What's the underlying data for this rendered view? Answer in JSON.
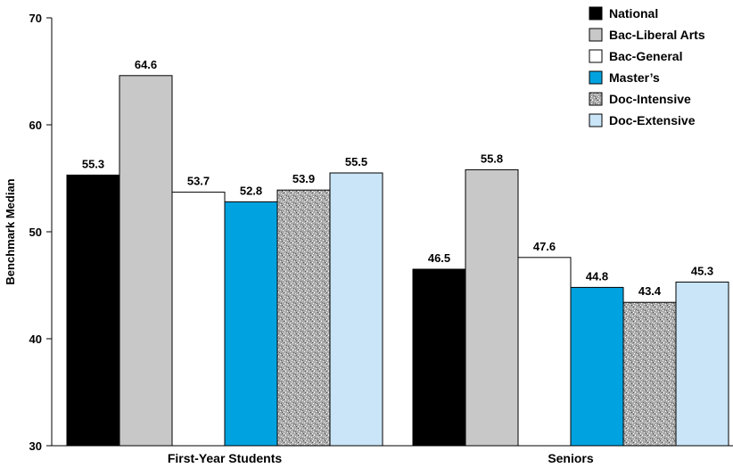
{
  "chart_data": {
    "type": "bar",
    "title": "",
    "xlabel": "",
    "ylabel": "Benchmark Median",
    "ylim": [
      30,
      70
    ],
    "yticks": [
      30,
      40,
      50,
      60,
      70
    ],
    "grid": false,
    "legend_position": "top-right",
    "categories": [
      "First-Year Students",
      "Seniors"
    ],
    "series": [
      {
        "name": "National",
        "values": [
          55.3,
          46.5
        ],
        "color": "#000000",
        "pattern": "solid"
      },
      {
        "name": "Bac-Liberal Arts",
        "values": [
          64.6,
          55.8
        ],
        "color": "#c8c8c8",
        "pattern": "solid"
      },
      {
        "name": "Bac-General",
        "values": [
          53.7,
          47.6
        ],
        "color": "#ffffff",
        "pattern": "solid"
      },
      {
        "name": "Master’s",
        "values": [
          52.8,
          44.8
        ],
        "color": "#00a3e0",
        "pattern": "solid"
      },
      {
        "name": "Doc-Intensive",
        "values": [
          53.9,
          43.4
        ],
        "color": "#b0b0b0",
        "pattern": "speckle"
      },
      {
        "name": "Doc-Extensive",
        "values": [
          55.5,
          45.3
        ],
        "color": "#c9e5f7",
        "pattern": "solid"
      }
    ]
  }
}
